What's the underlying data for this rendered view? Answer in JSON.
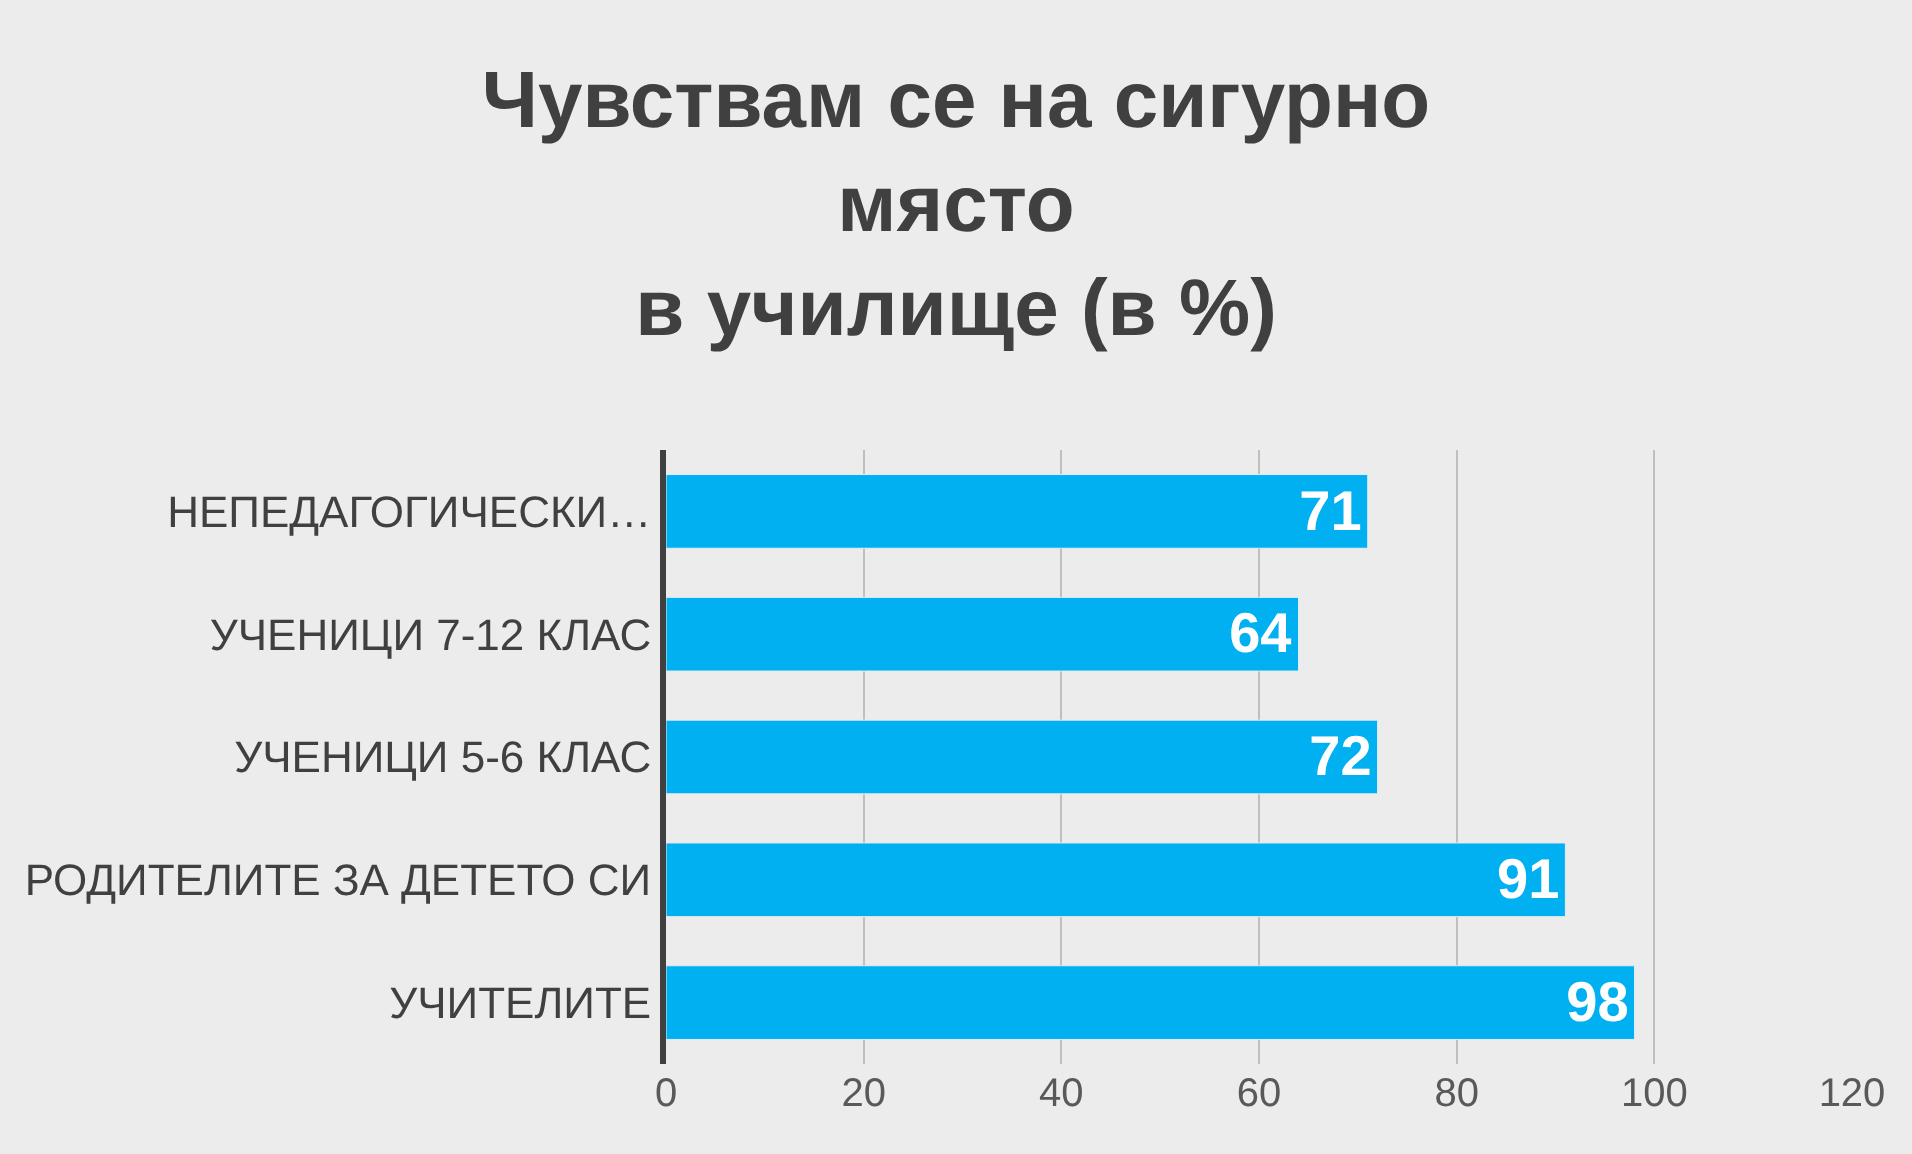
{
  "chart_data": {
    "type": "bar",
    "orientation": "horizontal",
    "title": "Чувствам се на сигурно\nмясто\nв училище (в %)",
    "categories": [
      "НЕПЕДАГОГИЧЕСКИ…",
      "УЧЕНИЦИ 7-12 КЛАС",
      "УЧЕНИЦИ 5-6 КЛАС",
      "РОДИТЕЛИТЕ ЗА ДЕТЕТО СИ",
      "УЧИТЕЛИТЕ"
    ],
    "values": [
      71,
      64,
      72,
      91,
      98
    ],
    "color": "#00b0f0",
    "xlim": [
      0,
      120
    ],
    "xticks": [
      0,
      20,
      40,
      60,
      80,
      100,
      120
    ],
    "grid": "x",
    "data_labels": true
  }
}
